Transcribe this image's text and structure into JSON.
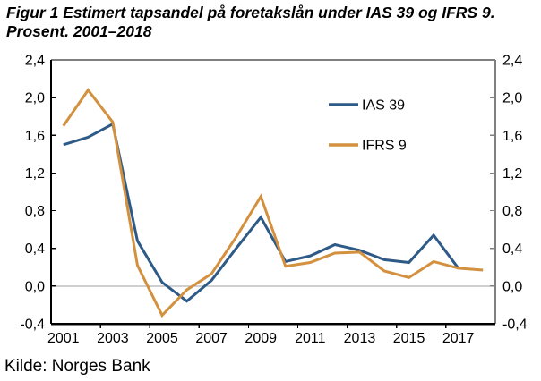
{
  "title": {
    "line1": "Figur 1 Estimert tapsandel på foretakslån under IAS 39 og IFRS 9.",
    "line2": "Prosent. 2001–2018"
  },
  "source": "Kilde: Norges Bank",
  "chart_data": {
    "type": "line",
    "x": [
      2001,
      2002,
      2003,
      2004,
      2005,
      2006,
      2007,
      2008,
      2009,
      2010,
      2011,
      2012,
      2013,
      2014,
      2015,
      2016,
      2017,
      2018
    ],
    "series": [
      {
        "name": "IAS 39",
        "color": "#2E5A87",
        "values": [
          1.5,
          1.58,
          1.72,
          0.48,
          0.04,
          -0.16,
          0.06,
          0.4,
          0.73,
          0.26,
          0.32,
          0.44,
          0.38,
          0.28,
          0.25,
          0.54,
          0.19,
          null
        ]
      },
      {
        "name": "IFRS 9",
        "color": "#D3913F",
        "values": [
          1.7,
          2.08,
          1.74,
          0.22,
          -0.31,
          -0.04,
          0.13,
          0.52,
          0.95,
          0.21,
          0.25,
          0.35,
          0.36,
          0.16,
          0.09,
          0.26,
          0.19,
          0.17
        ]
      }
    ],
    "ylim": [
      -0.4,
      2.4
    ],
    "ytick_step": 0.4,
    "ytick_labels_left": [
      "2,4",
      "2,0",
      "1,6",
      "1,2",
      "0,8",
      "0,4",
      "0,0",
      "-0,4"
    ],
    "ytick_labels_right": [
      "2,4",
      "2,0",
      "1,6",
      "1,2",
      "0,8",
      "0,4",
      "0,0",
      "-0,4"
    ],
    "xtick_labels": [
      "2001",
      "2003",
      "2005",
      "2007",
      "2009",
      "2011",
      "2013",
      "2015",
      "2017"
    ],
    "decimal_separator": ",",
    "grid": false,
    "zero_line": true,
    "legend_position": "inside-top-right",
    "legend": [
      "IAS 39",
      "IFRS 9"
    ],
    "colors": {
      "axis_left_bottom": "#000000",
      "axis_top_right": "#808080",
      "zero_line": "#A0A0A0"
    }
  }
}
